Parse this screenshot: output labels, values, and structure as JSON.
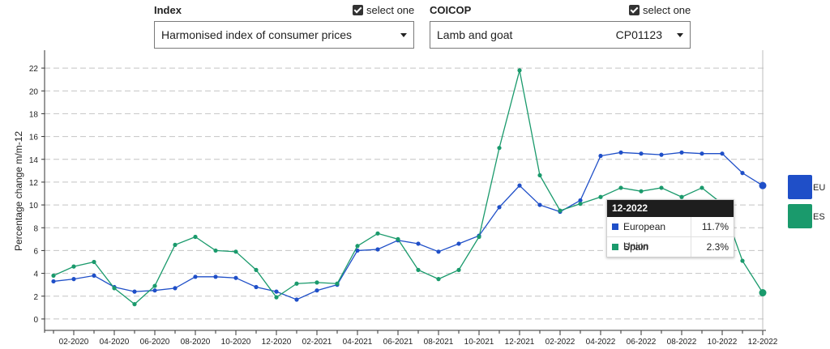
{
  "controls": {
    "index": {
      "label": "Index",
      "select_one_label": "select one",
      "selected": "Harmonised index of consumer prices"
    },
    "coicop": {
      "label": "COICOP",
      "select_one_label": "select one",
      "selected": "Lamb and goat",
      "code": "CP01123"
    }
  },
  "legend": [
    {
      "code": "EU",
      "color": "#1f4fc8"
    },
    {
      "code": "ES",
      "color": "#1a9a6c"
    }
  ],
  "tooltip": {
    "period": "12-2022",
    "rows": [
      {
        "name": "European Union",
        "value": "11.7%",
        "color": "#1f4fc8"
      },
      {
        "name": "Spain",
        "value": "2.3%",
        "color": "#1a9a6c"
      }
    ]
  },
  "chart_data": {
    "type": "line",
    "ylabel": "Percentage change m/m-12",
    "ylim": [
      -1,
      23
    ],
    "yticks": [
      0,
      2,
      4,
      6,
      8,
      10,
      12,
      14,
      16,
      18,
      20,
      22
    ],
    "grid": true,
    "x": [
      "01-2020",
      "02-2020",
      "03-2020",
      "04-2020",
      "05-2020",
      "06-2020",
      "07-2020",
      "08-2020",
      "09-2020",
      "10-2020",
      "11-2020",
      "12-2020",
      "01-2021",
      "02-2021",
      "03-2021",
      "04-2021",
      "05-2021",
      "06-2021",
      "07-2021",
      "08-2021",
      "09-2021",
      "10-2021",
      "11-2021",
      "12-2021",
      "01-2022",
      "02-2022",
      "03-2022",
      "04-2022",
      "05-2022",
      "06-2022",
      "07-2022",
      "08-2022",
      "09-2022",
      "10-2022",
      "11-2022",
      "12-2022"
    ],
    "xtick_labels": [
      "02-2020",
      "04-2020",
      "06-2020",
      "08-2020",
      "10-2020",
      "12-2020",
      "02-2021",
      "04-2021",
      "06-2021",
      "08-2021",
      "10-2021",
      "12-2021",
      "02-2022",
      "04-2022",
      "06-2022",
      "08-2022",
      "10-2022",
      "12-2022"
    ],
    "highlight": "12-2022",
    "series": [
      {
        "code": "EU",
        "color": "#1f4fc8",
        "values": [
          3.3,
          3.5,
          3.8,
          2.8,
          2.4,
          2.5,
          2.7,
          3.7,
          3.7,
          3.6,
          2.8,
          2.4,
          1.7,
          2.5,
          3.0,
          6.0,
          6.1,
          6.9,
          6.6,
          5.9,
          6.6,
          7.3,
          9.8,
          11.7,
          10.0,
          9.4,
          10.4,
          14.3,
          14.6,
          14.5,
          14.4,
          14.6,
          14.5,
          14.5,
          12.8,
          11.7
        ]
      },
      {
        "code": "ES",
        "color": "#1a9a6c",
        "values": [
          3.8,
          4.6,
          5.0,
          2.7,
          1.3,
          2.9,
          6.5,
          7.2,
          6.0,
          5.9,
          4.3,
          1.9,
          3.1,
          3.2,
          3.1,
          6.4,
          7.5,
          7.0,
          4.3,
          3.5,
          4.3,
          7.2,
          15.0,
          21.8,
          12.6,
          9.5,
          10.1,
          10.7,
          11.5,
          11.2,
          11.5,
          10.7,
          11.5,
          10.1,
          5.1,
          2.3
        ]
      }
    ]
  }
}
